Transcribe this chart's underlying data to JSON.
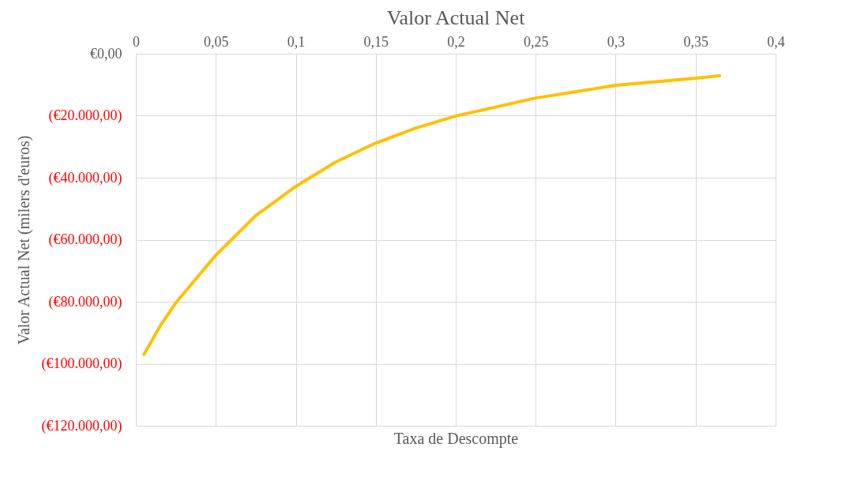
{
  "chart_data": {
    "type": "line",
    "title": "Valor Actual Net",
    "xlabel": "Taxa de Descompte",
    "ylabel": "Valor Actual Net (milers d'euros)",
    "x": [
      0.005,
      0.015,
      0.025,
      0.05,
      0.075,
      0.1,
      0.125,
      0.15,
      0.175,
      0.2,
      0.25,
      0.3,
      0.35,
      0.365
    ],
    "series": [
      {
        "color": "#ffc000",
        "values": [
          -97000,
          -88000,
          -80300,
          -65000,
          -52200,
          -42800,
          -34900,
          -28800,
          -24000,
          -20100,
          -14300,
          -10200,
          -7900,
          -7100
        ]
      }
    ],
    "xlim": [
      0,
      0.4
    ],
    "xticks": [
      {
        "value": 0,
        "label": "0"
      },
      {
        "value": 0.05,
        "label": "0,05"
      },
      {
        "value": 0.1,
        "label": "0,1"
      },
      {
        "value": 0.15,
        "label": "0,15"
      },
      {
        "value": 0.2,
        "label": "0,2"
      },
      {
        "value": 0.25,
        "label": "0,25"
      },
      {
        "value": 0.3,
        "label": "0,3"
      },
      {
        "value": 0.35,
        "label": "0,35"
      },
      {
        "value": 0.4,
        "label": "0,4"
      }
    ],
    "ylim": [
      -120000,
      0
    ],
    "yticks": [
      {
        "value": -120000,
        "label": "(€120.000,00)"
      },
      {
        "value": -100000,
        "label": "(€100.000,00)"
      },
      {
        "value": -80000,
        "label": "(€80.000,00)"
      },
      {
        "value": -60000,
        "label": "(€60.000,00)"
      },
      {
        "value": -40000,
        "label": "(€40.000,00)"
      },
      {
        "value": -20000,
        "label": "(€20.000,00)"
      },
      {
        "value": 0,
        "label": "€0,00"
      }
    ],
    "grid": true,
    "legend": false,
    "marker": "none",
    "line_style": "solid"
  }
}
